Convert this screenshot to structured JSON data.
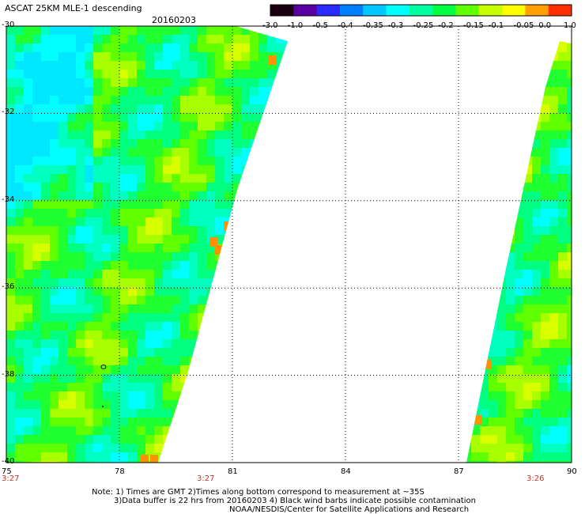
{
  "title": "ASCAT 25KM MLE-1 descending",
  "date": "20160203",
  "colorbar": {
    "labels": [
      "-3.0",
      "-1.0",
      "-0.5",
      "-0.4",
      "-0.35",
      "-0.3",
      "-0.25",
      "-0.2",
      "-0.15",
      "-0.1",
      "-0.05",
      "0.0",
      "1.0"
    ],
    "colors": [
      "#1a0010",
      "#5a00a0",
      "#2a2aff",
      "#0080ff",
      "#00c8ff",
      "#00ffff",
      "#00ffa0",
      "#00ff40",
      "#60ff00",
      "#c8ff00",
      "#ffff00",
      "#ffa000",
      "#ff3000"
    ]
  },
  "map": {
    "lon_labels": [
      "75",
      "78",
      "81",
      "84",
      "87",
      "90"
    ],
    "lat_labels": [
      "-30",
      "-32",
      "-34",
      "-36",
      "-38",
      "-40"
    ],
    "lon_range": [
      75,
      90
    ],
    "lat_range": [
      -30,
      -40
    ],
    "grid": "dotted"
  },
  "pass_times": [
    "3:27",
    "3:27",
    "3:26"
  ],
  "notes": [
    "Note: 1) Times are GMT 2)Times along bottom correspond to measurement at ~35S",
    "3)Data buffer is 22 hrs from 20160203 4) Black wind barbs indicate possible contamination",
    "NOAA/NESDIS/Center for Satellite Applications and Research"
  ]
}
